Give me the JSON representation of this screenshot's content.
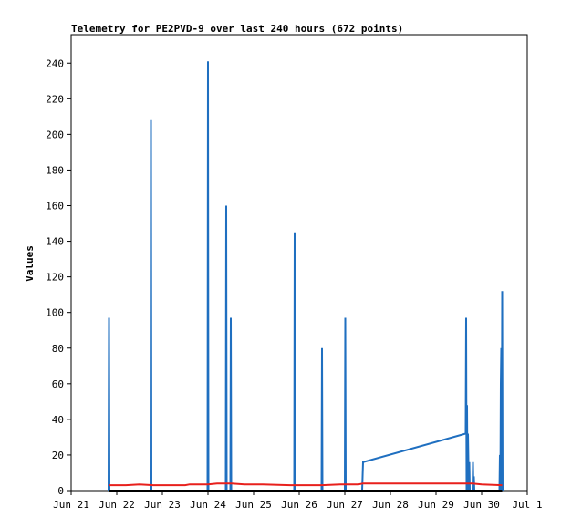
{
  "chart_data": {
    "type": "line",
    "title": "Telemetry for PE2PVD-9 over last 240 hours (672 points)",
    "ylabel": "Values",
    "xlabel": "",
    "x_unit": "days since Jun 21",
    "xlim": [
      0,
      10
    ],
    "ylim": [
      0,
      256
    ],
    "x_ticks": [
      {
        "x": 0,
        "label": "Jun 21"
      },
      {
        "x": 1,
        "label": "Jun 22"
      },
      {
        "x": 2,
        "label": "Jun 23"
      },
      {
        "x": 3,
        "label": "Jun 24"
      },
      {
        "x": 4,
        "label": "Jun 25"
      },
      {
        "x": 5,
        "label": "Jun 26"
      },
      {
        "x": 6,
        "label": "Jun 27"
      },
      {
        "x": 7,
        "label": "Jun 28"
      },
      {
        "x": 8,
        "label": "Jun 29"
      },
      {
        "x": 9,
        "label": "Jun 30"
      },
      {
        "x": 10,
        "label": "Jul 1"
      }
    ],
    "y_ticks": [
      0,
      20,
      40,
      60,
      80,
      100,
      120,
      140,
      160,
      180,
      200,
      220,
      240
    ],
    "grid": false,
    "series": [
      {
        "color": "#1f6fc0",
        "points": [
          [
            0.82,
            0
          ],
          [
            0.83,
            97
          ],
          [
            0.84,
            0
          ],
          [
            1.74,
            0
          ],
          [
            1.75,
            208
          ],
          [
            1.76,
            0
          ],
          [
            2.99,
            0
          ],
          [
            3.0,
            241
          ],
          [
            3.01,
            0
          ],
          [
            3.39,
            0
          ],
          [
            3.4,
            160
          ],
          [
            3.41,
            0
          ],
          [
            3.49,
            0
          ],
          [
            3.5,
            97
          ],
          [
            3.51,
            0
          ],
          [
            4.89,
            0
          ],
          [
            4.9,
            145
          ],
          [
            4.91,
            0
          ],
          [
            5.49,
            0
          ],
          [
            5.5,
            80
          ],
          [
            5.51,
            0
          ],
          [
            6.0,
            0
          ],
          [
            6.01,
            97
          ],
          [
            6.02,
            0
          ],
          [
            6.38,
            0
          ],
          [
            6.39,
            8
          ],
          [
            6.4,
            16
          ],
          [
            8.65,
            32
          ],
          [
            8.66,
            97
          ],
          [
            8.67,
            0
          ],
          [
            8.68,
            48
          ],
          [
            8.69,
            0
          ],
          [
            8.7,
            32
          ],
          [
            8.72,
            0
          ],
          [
            8.73,
            16
          ],
          [
            8.74,
            0
          ],
          [
            8.8,
            0
          ],
          [
            8.81,
            16
          ],
          [
            8.82,
            0
          ],
          [
            8.83,
            8
          ],
          [
            8.84,
            0
          ],
          [
            9.39,
            0
          ],
          [
            9.4,
            20
          ],
          [
            9.41,
            0
          ],
          [
            9.42,
            60
          ],
          [
            9.43,
            80
          ],
          [
            9.44,
            0
          ],
          [
            9.45,
            112
          ],
          [
            9.46,
            0
          ]
        ]
      },
      {
        "color": "#e8201c",
        "points": [
          [
            0.84,
            3
          ],
          [
            1.2,
            3
          ],
          [
            1.5,
            3.5
          ],
          [
            1.8,
            3
          ],
          [
            2.5,
            3
          ],
          [
            2.6,
            3.5
          ],
          [
            3.0,
            3.5
          ],
          [
            3.2,
            4
          ],
          [
            3.5,
            4
          ],
          [
            3.8,
            3.5
          ],
          [
            4.2,
            3.5
          ],
          [
            4.8,
            3
          ],
          [
            5.5,
            3
          ],
          [
            5.9,
            3.5
          ],
          [
            6.3,
            3.5
          ],
          [
            6.4,
            4
          ],
          [
            8.0,
            4
          ],
          [
            8.8,
            4
          ],
          [
            9.0,
            3.5
          ],
          [
            9.45,
            3
          ]
        ]
      },
      {
        "color": "#000000",
        "points": [
          [
            0.84,
            0
          ],
          [
            9.45,
            0
          ]
        ]
      }
    ]
  }
}
